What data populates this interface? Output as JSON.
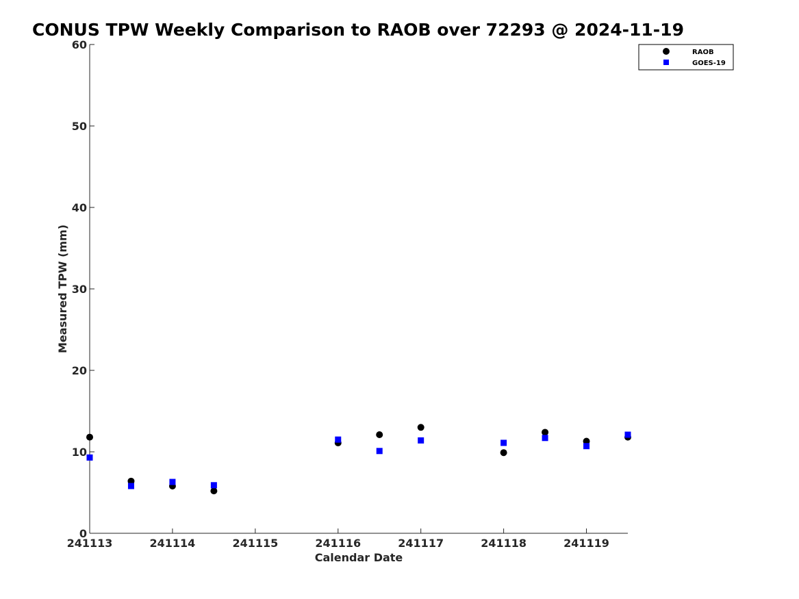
{
  "chart_data": {
    "type": "scatter",
    "title": "CONUS TPW Weekly Comparison to RAOB over 72293 @ 2024-11-19",
    "xlabel": "Calendar Date",
    "ylabel": "Measured TPW (mm)",
    "xlim": [
      241113,
      241119.5
    ],
    "ylim": [
      0,
      60
    ],
    "xticks": [
      241113,
      241114,
      241115,
      241116,
      241117,
      241118,
      241119
    ],
    "xtick_labels": [
      "241113",
      "241114",
      "241115",
      "241116",
      "241117",
      "241118",
      "241119"
    ],
    "yticks": [
      0,
      10,
      20,
      30,
      40,
      50,
      60
    ],
    "ytick_labels": [
      "0",
      "10",
      "20",
      "30",
      "40",
      "50",
      "60"
    ],
    "grid": false,
    "legend_position": "top-right",
    "series": [
      {
        "name": "RAOB",
        "marker": "circle",
        "color": "#000000",
        "x": [
          241113,
          241113.5,
          241114,
          241114.5,
          241116,
          241116.5,
          241117,
          241118,
          241118.5,
          241119,
          241119.5
        ],
        "y": [
          11.8,
          6.4,
          5.8,
          5.2,
          11.1,
          12.1,
          13.0,
          9.9,
          12.4,
          11.3,
          11.8
        ]
      },
      {
        "name": "GOES-19",
        "marker": "square",
        "color": "#0000ff",
        "x": [
          241113,
          241113.5,
          241114,
          241114.5,
          241116,
          241116.5,
          241117,
          241118,
          241118.5,
          241119,
          241119.5
        ],
        "y": [
          9.3,
          5.8,
          6.3,
          5.9,
          11.5,
          10.1,
          11.4,
          11.1,
          11.7,
          10.7,
          12.1
        ]
      }
    ]
  }
}
